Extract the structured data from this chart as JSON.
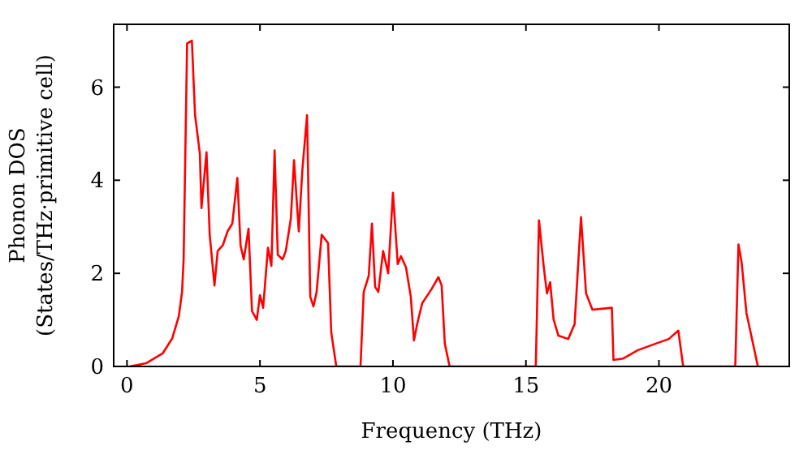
{
  "chart_data": {
    "type": "line",
    "xlabel": "Frequency (THz)",
    "ylabel": "Phonon DOS\n(States/THz·primitive cell)",
    "xlim": [
      -0.5,
      24.9
    ],
    "ylim": [
      0,
      7.35
    ],
    "xticks": [
      0,
      5,
      10,
      15,
      20
    ],
    "yticks": [
      0,
      2,
      4,
      6
    ],
    "grid": false,
    "marker": "none",
    "line_style": "solid",
    "series": [
      {
        "color": "#ff0000",
        "x": [
          0.1,
          0.73,
          1.34,
          1.7,
          1.95,
          2.07,
          2.13,
          2.26,
          2.44,
          2.56,
          2.74,
          2.8,
          2.99,
          3.11,
          3.29,
          3.41,
          3.6,
          3.78,
          3.96,
          4.15,
          4.27,
          4.39,
          4.57,
          4.7,
          4.88,
          5.0,
          5.12,
          5.3,
          5.43,
          5.55,
          5.67,
          5.85,
          5.97,
          6.16,
          6.28,
          6.46,
          6.59,
          6.77,
          6.89,
          7.01,
          7.13,
          7.32,
          7.56,
          7.68,
          7.87,
          8.78,
          8.9,
          9.09,
          9.21,
          9.33,
          9.45,
          9.63,
          9.82,
          10.0,
          10.18,
          10.3,
          10.49,
          10.67,
          10.79,
          10.91,
          11.1,
          11.46,
          11.71,
          11.83,
          11.95,
          12.13,
          15.37,
          15.49,
          15.67,
          15.79,
          15.91,
          16.04,
          16.22,
          16.59,
          16.83,
          17.07,
          17.26,
          17.5,
          18.23,
          18.29,
          18.66,
          19.21,
          19.88,
          20.37,
          20.73,
          20.91,
          22.87,
          22.99,
          23.11,
          23.29,
          23.72
        ],
        "values": [
          0,
          0.07,
          0.28,
          0.6,
          1.08,
          1.6,
          2.3,
          6.94,
          7.0,
          5.4,
          4.57,
          3.4,
          4.6,
          2.83,
          1.74,
          2.48,
          2.6,
          2.9,
          3.07,
          4.05,
          2.6,
          2.3,
          2.96,
          1.19,
          1.0,
          1.53,
          1.26,
          2.55,
          2.16,
          4.64,
          2.4,
          2.3,
          2.48,
          3.17,
          4.43,
          2.9,
          4.19,
          5.4,
          1.5,
          1.29,
          1.6,
          2.83,
          2.65,
          0.73,
          0,
          0,
          1.6,
          1.95,
          3.07,
          1.71,
          1.6,
          2.48,
          2.0,
          3.73,
          2.2,
          2.37,
          2.13,
          1.5,
          0.56,
          0.91,
          1.36,
          1.67,
          1.92,
          1.74,
          0.49,
          0,
          0,
          3.14,
          2.13,
          1.57,
          1.81,
          1.01,
          0.66,
          0.59,
          0.91,
          3.21,
          1.57,
          1.22,
          1.26,
          0.14,
          0.17,
          0.35,
          0.49,
          0.59,
          0.77,
          0,
          0,
          2.62,
          2.23,
          1.15,
          0
        ]
      }
    ]
  }
}
